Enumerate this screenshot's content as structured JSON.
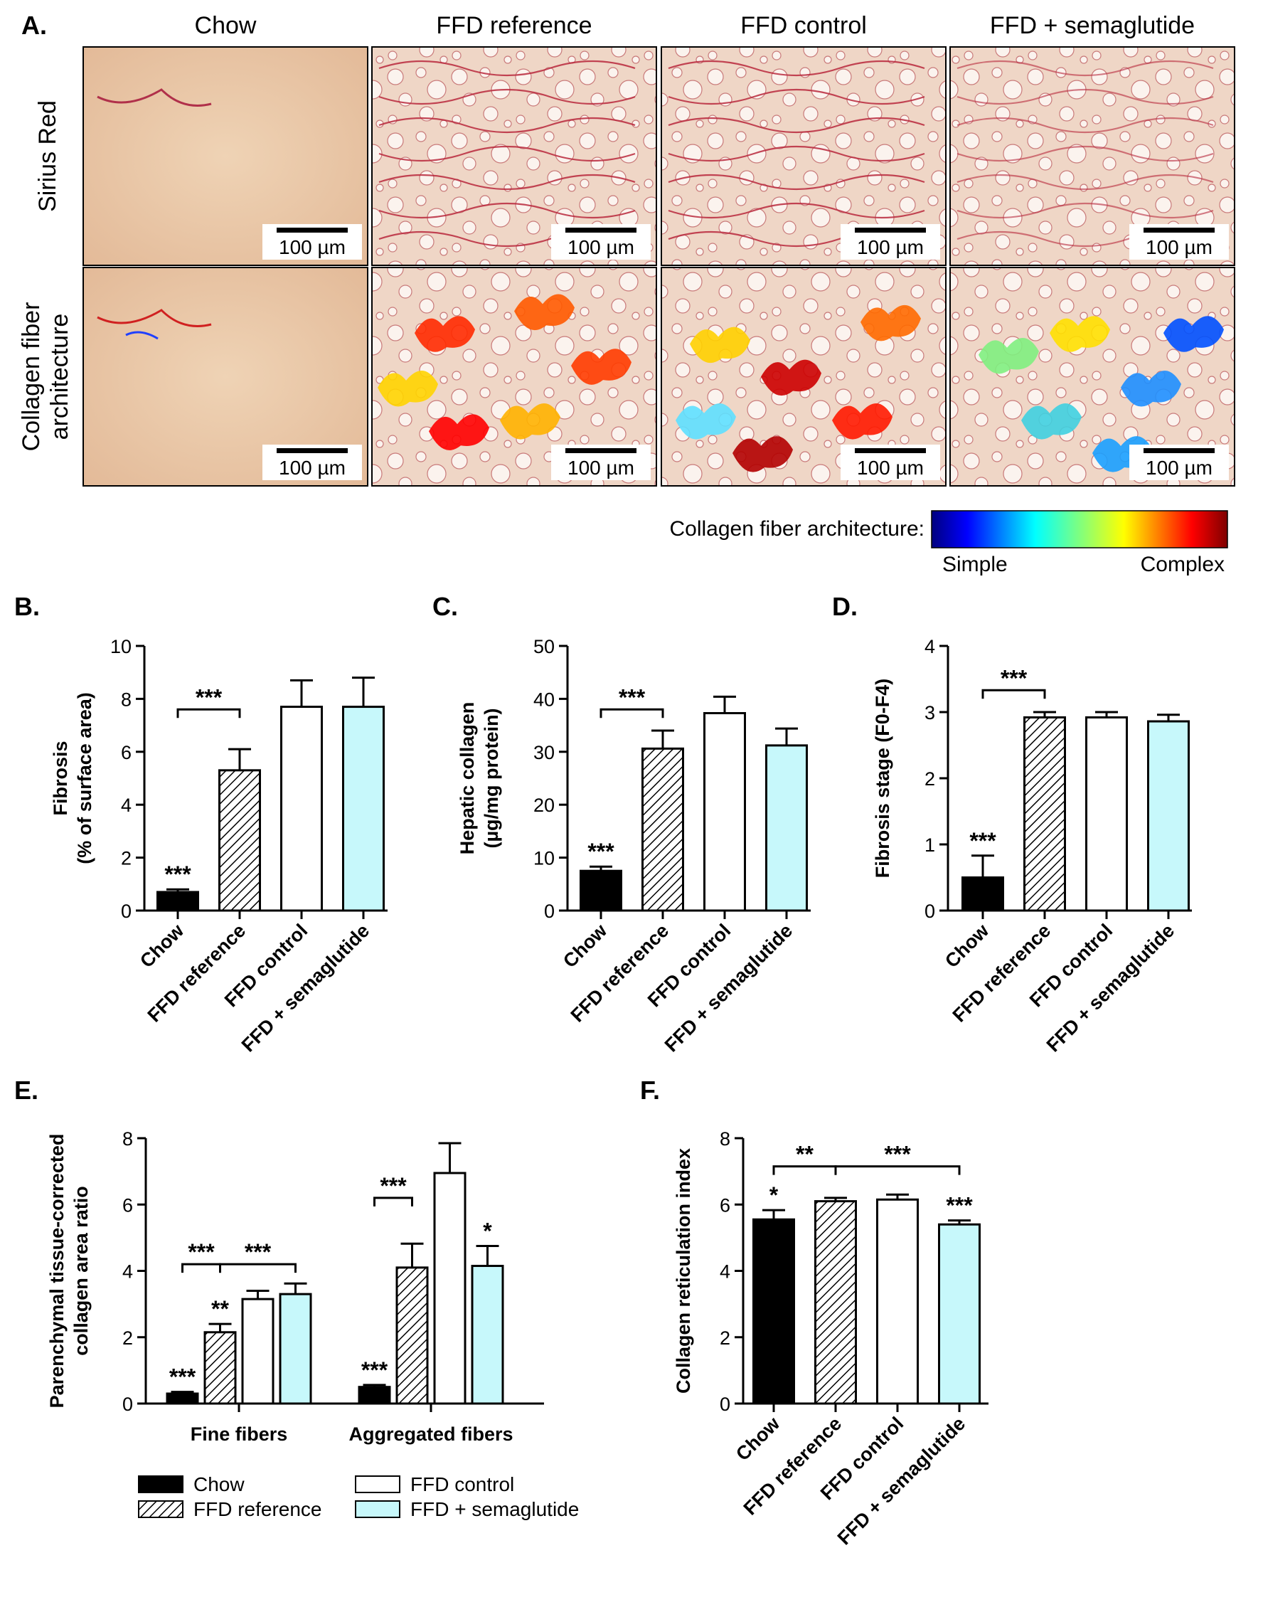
{
  "panel_letters": {
    "a": "A.",
    "b": "B.",
    "c": "C.",
    "d": "D.",
    "e": "E.",
    "f": "F."
  },
  "micrographs": {
    "columns": [
      "Chow",
      "FFD reference",
      "FFD control",
      "FFD + semaglutide"
    ],
    "rows": [
      "Sirius Red",
      "Collagen fiber\narchitecture"
    ],
    "scale_bar": "100 µm",
    "colorbar": {
      "title": "Collagen fiber architecture:",
      "low": "Simple",
      "high": "Complex"
    }
  },
  "groups": [
    "Chow",
    "FFD reference",
    "FFD control",
    "FFD + semaglutide"
  ],
  "colors": {
    "chow": "#000000",
    "reference": "#ffffff",
    "control": "#ffffff",
    "semaglutide": "#c7f8fb",
    "stroke": "#000000"
  },
  "legend": {
    "chow": "Chow",
    "reference": "FFD reference",
    "control": "FFD control",
    "semaglutide": "FFD + semaglutide"
  },
  "chart_data": [
    {
      "id": "B",
      "type": "bar",
      "title": "",
      "ylabel": [
        "Fibrosis",
        "(% of surface area)"
      ],
      "categories": [
        "Chow",
        "FFD reference",
        "FFD control",
        "FFD + semaglutide"
      ],
      "values": [
        0.7,
        5.3,
        7.7,
        7.7
      ],
      "errors": [
        0.1,
        0.8,
        1.0,
        1.1
      ],
      "ylim": [
        0,
        10
      ],
      "yticks": [
        0,
        2,
        4,
        6,
        8,
        10
      ],
      "bar_stars": [
        "***",
        "",
        "",
        ""
      ],
      "brackets": [
        {
          "from": 0,
          "to": 1,
          "y": 7.6,
          "label": "***"
        }
      ]
    },
    {
      "id": "C",
      "type": "bar",
      "title": "",
      "ylabel": [
        "Hepatic collagen",
        "(µg/mg protein)"
      ],
      "categories": [
        "Chow",
        "FFD reference",
        "FFD control",
        "FFD + semaglutide"
      ],
      "values": [
        7.5,
        30.6,
        37.3,
        31.2
      ],
      "errors": [
        0.8,
        3.4,
        3.1,
        3.2
      ],
      "ylim": [
        0,
        50
      ],
      "yticks": [
        0,
        10,
        20,
        30,
        40,
        50
      ],
      "bar_stars": [
        "***",
        "",
        "",
        ""
      ],
      "brackets": [
        {
          "from": 0,
          "to": 1,
          "y": 38,
          "label": "***"
        }
      ]
    },
    {
      "id": "D",
      "type": "bar",
      "title": "",
      "ylabel": [
        "Fibrosis stage (F0-F4)"
      ],
      "categories": [
        "Chow",
        "FFD reference",
        "FFD control",
        "FFD + semaglutide"
      ],
      "values": [
        0.5,
        2.92,
        2.92,
        2.86
      ],
      "errors": [
        0.33,
        0.08,
        0.08,
        0.1
      ],
      "ylim": [
        0,
        4
      ],
      "yticks": [
        0,
        1,
        2,
        3,
        4
      ],
      "bar_stars": [
        "***",
        "",
        "",
        ""
      ],
      "brackets": [
        {
          "from": 0,
          "to": 1,
          "y": 3.33,
          "label": "***"
        }
      ]
    },
    {
      "id": "E",
      "type": "bar",
      "title": "",
      "ylabel": [
        "Parenchymal tissue-corrected",
        "collagen area ratio"
      ],
      "categories": [
        "Fine fibers",
        "Aggregated fibers"
      ],
      "series": [
        {
          "name": "Chow",
          "values": [
            0.3,
            0.5
          ],
          "errors": [
            0.05,
            0.06
          ],
          "stars": [
            "***",
            "***"
          ]
        },
        {
          "name": "FFD reference",
          "values": [
            2.15,
            4.1
          ],
          "errors": [
            0.25,
            0.72
          ],
          "stars": [
            "**",
            ""
          ]
        },
        {
          "name": "FFD control",
          "values": [
            3.15,
            6.95
          ],
          "errors": [
            0.25,
            0.9
          ],
          "stars": [
            "",
            ""
          ]
        },
        {
          "name": "FFD + semaglutide",
          "values": [
            3.3,
            4.15
          ],
          "errors": [
            0.32,
            0.6
          ],
          "stars": [
            "",
            "*"
          ]
        }
      ],
      "ylim": [
        0,
        8
      ],
      "yticks": [
        0,
        2,
        4,
        6,
        8
      ],
      "brackets": [
        {
          "cat": 0,
          "from": 0,
          "to": 1,
          "y": 4.2,
          "label": "***"
        },
        {
          "cat": 0,
          "from": 1,
          "to": 3,
          "y": 4.2,
          "label": "***"
        },
        {
          "cat": 1,
          "from": 0,
          "to": 1,
          "y": 6.2,
          "label": "***"
        }
      ]
    },
    {
      "id": "F",
      "type": "bar",
      "title": "",
      "ylabel": [
        "Collagen reticulation index"
      ],
      "categories": [
        "Chow",
        "FFD reference",
        "FFD control",
        "FFD + semaglutide"
      ],
      "values": [
        5.55,
        6.1,
        6.15,
        5.4
      ],
      "errors": [
        0.28,
        0.1,
        0.15,
        0.12
      ],
      "ylim": [
        0,
        8
      ],
      "yticks": [
        0,
        2,
        4,
        6,
        8
      ],
      "bar_stars": [
        "*",
        "",
        "",
        "***"
      ],
      "brackets": [
        {
          "from": 0,
          "to": 1,
          "y": 7.15,
          "label": "**"
        },
        {
          "from": 1,
          "to": 3,
          "y": 7.15,
          "label": "***"
        }
      ]
    }
  ]
}
